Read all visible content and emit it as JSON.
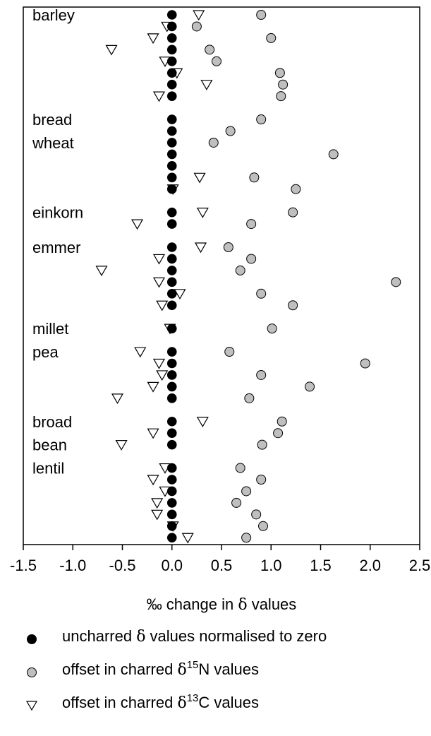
{
  "chart_data": {
    "type": "scatter",
    "orientation": "horizontal-dot-plot",
    "xlabel_prefix": "‰ change in ",
    "xlabel_symbol": "δ",
    "xlabel_suffix": " values",
    "xlim": [
      -1.5,
      2.5
    ],
    "xticks": [
      -1.5,
      -1.0,
      -0.5,
      0.0,
      0.5,
      1.0,
      1.5,
      2.0,
      2.5
    ],
    "xtick_labels": [
      "-1.5",
      "-1.0",
      "-0.5",
      "0.0",
      "0.5",
      "1.0",
      "1.5",
      "2.0",
      "2.5"
    ],
    "grid": false,
    "category_labels": [
      {
        "text": "barley",
        "row": 1
      },
      {
        "text": "bread",
        "row": 10
      },
      {
        "text": "wheat",
        "row": 12
      },
      {
        "text": "einkorn",
        "row": 18
      },
      {
        "text": "emmer",
        "row": 21
      },
      {
        "text": "millet",
        "row": 28
      },
      {
        "text": "pea",
        "row": 30
      },
      {
        "text": "broad",
        "row": 36
      },
      {
        "text": "bean",
        "row": 38
      },
      {
        "text": "lentil",
        "row": 40
      }
    ],
    "rows": [
      1,
      2,
      3,
      4,
      5,
      6,
      7,
      8,
      10,
      11,
      12,
      13,
      14,
      15,
      16,
      18,
      19,
      21,
      22,
      23,
      24,
      25,
      26,
      28,
      30,
      31,
      32,
      33,
      34,
      36,
      37,
      38,
      40,
      41,
      42,
      43,
      44,
      45,
      46
    ],
    "series": [
      {
        "name": "uncharred δ values normalised to zero",
        "marker": "filled-circle",
        "color": "#000000",
        "values": [
          0,
          0,
          0,
          0,
          0,
          0,
          0,
          0,
          0,
          0,
          0,
          0,
          0,
          0,
          0,
          0,
          0,
          0,
          0,
          0,
          0,
          0,
          0,
          0,
          0,
          0,
          0,
          0,
          0,
          0,
          0,
          0,
          0,
          0,
          0,
          0,
          0,
          0,
          0
        ]
      },
      {
        "name": "offset in charred δ15N values",
        "marker": "grey-circle",
        "color": "#bfbfbf",
        "values": [
          0.9,
          0.25,
          1.0,
          0.38,
          0.45,
          1.09,
          1.12,
          1.1,
          0.9,
          0.59,
          0.42,
          1.63,
          null,
          0.83,
          1.25,
          1.22,
          0.8,
          0.57,
          0.8,
          0.69,
          2.26,
          0.9,
          1.22,
          1.01,
          0.58,
          1.95,
          0.9,
          1.39,
          0.78,
          1.11,
          1.07,
          0.91,
          0.69,
          0.9,
          0.75,
          0.65,
          0.85,
          0.92,
          0.75
        ]
      },
      {
        "name": "offset in charred δ13C values",
        "marker": "open-triangle-down",
        "color": "#000000",
        "values": [
          0.27,
          -0.05,
          -0.19,
          -0.61,
          -0.07,
          0.05,
          0.35,
          -0.13,
          null,
          null,
          null,
          null,
          null,
          0.28,
          0.01,
          0.31,
          -0.35,
          0.29,
          -0.13,
          -0.71,
          -0.13,
          0.08,
          -0.1,
          -0.02,
          -0.32,
          -0.13,
          -0.1,
          -0.19,
          -0.55,
          0.31,
          -0.19,
          -0.51,
          -0.07,
          -0.19,
          -0.07,
          -0.15,
          -0.15,
          0.01,
          0.16
        ]
      }
    ]
  },
  "legend": {
    "uncharred_pre": "uncharred ",
    "uncharred_sym": "δ",
    "uncharred_post": " values normalised to zero",
    "n15_pre": "offset in charred ",
    "n15_sym": "δ",
    "n15_sup": "15",
    "n15_post": "N values",
    "c13_pre": "offset in charred ",
    "c13_sym": "δ",
    "c13_sup": "13",
    "c13_post": "C values"
  }
}
